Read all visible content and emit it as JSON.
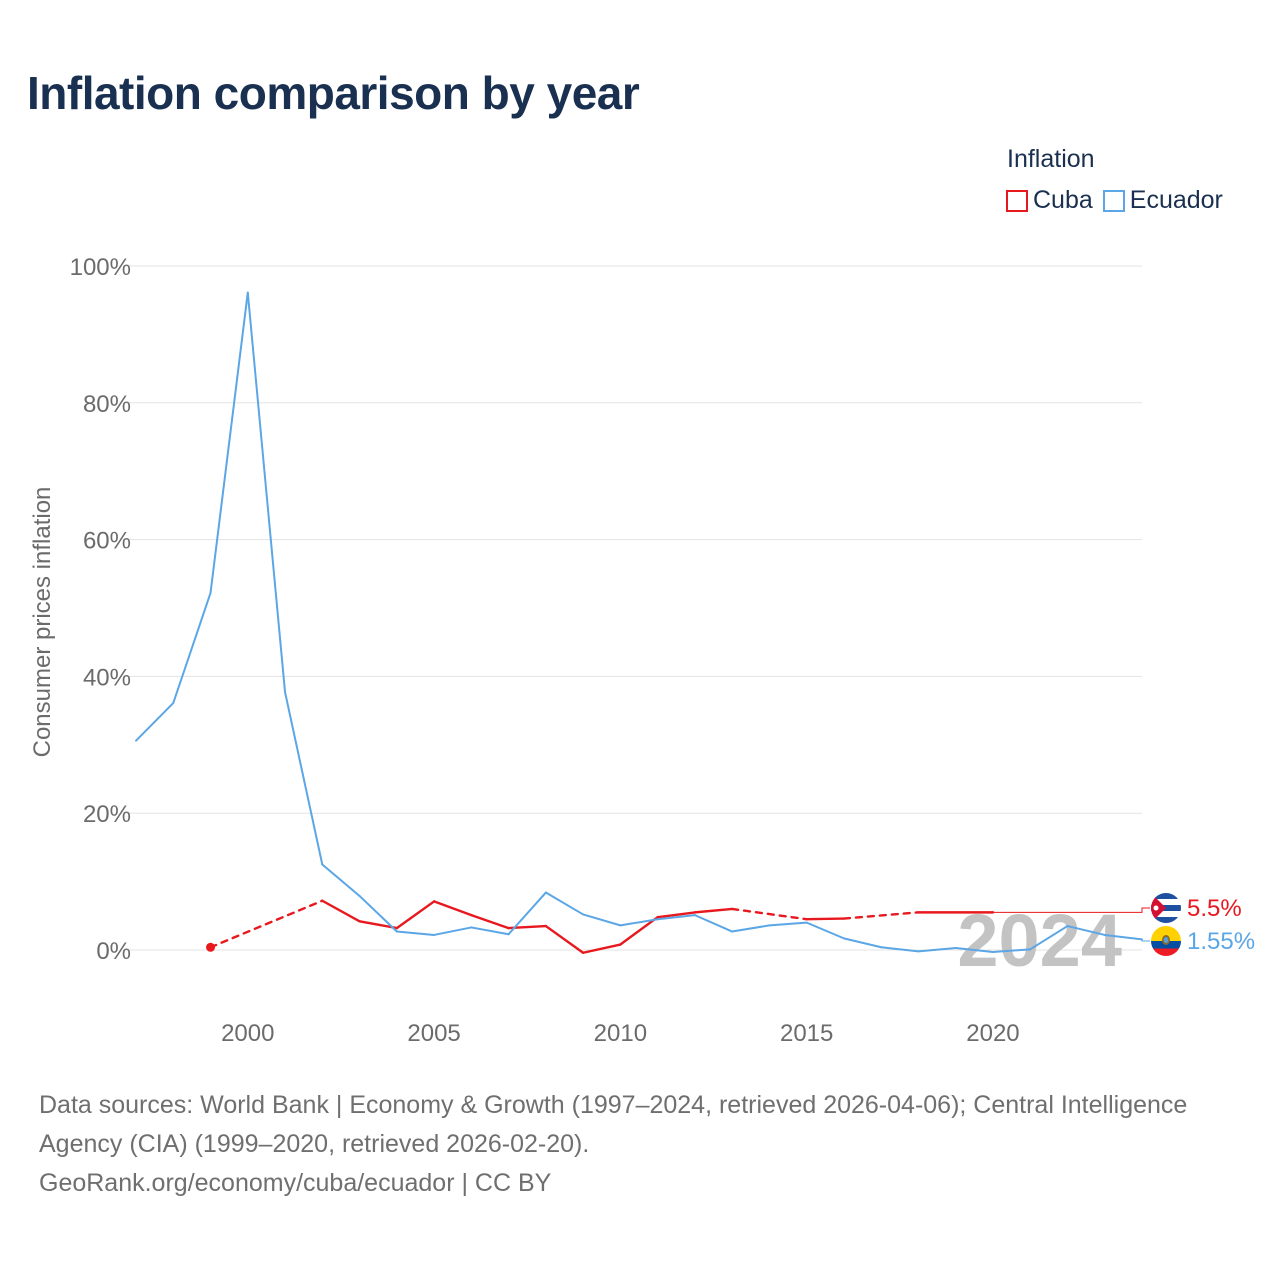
{
  "title": "Inflation comparison by year",
  "legend": {
    "title": "Inflation",
    "items": [
      {
        "label": "Cuba",
        "color": "#e8191e"
      },
      {
        "label": "Ecuador",
        "color": "#5ba6e6"
      }
    ]
  },
  "footer": {
    "sources": "Data sources: World Bank | Economy & Growth (1997–2024, retrieved 2026-04-06); Central Intelligence Agency (CIA) (1999–2020, retrieved 2026-02-20).",
    "credit": "GeoRank.org/economy/cuba/ecuador | CC BY"
  },
  "chart_data": {
    "type": "line",
    "title": "Inflation comparison by year",
    "ylabel": "Consumer prices inflation",
    "xlabel": "",
    "xlim": [
      1997,
      2024
    ],
    "ylim": [
      -9,
      100
    ],
    "x_ticks": [
      2000,
      2005,
      2010,
      2015,
      2020
    ],
    "x_tick_labels": [
      "2000",
      "2005",
      "2010",
      "2015",
      "2020"
    ],
    "y_ticks": [
      0,
      20,
      40,
      60,
      80,
      100
    ],
    "y_tick_labels": [
      "0%",
      "20%",
      "40%",
      "60%",
      "80%",
      "100%"
    ],
    "grid": true,
    "year_watermark": "2024",
    "series": [
      {
        "name": "Cuba",
        "color": "#e8191e",
        "end_label": "5.5%",
        "flag": "cuba-flag",
        "points": [
          [
            1999,
            0.4
          ],
          [
            2002,
            7.2
          ],
          [
            2003,
            4.2
          ],
          [
            2004,
            3.2
          ],
          [
            2005,
            7.1
          ],
          [
            2006,
            5.1
          ],
          [
            2007,
            3.2
          ],
          [
            2008,
            3.5
          ],
          [
            2009,
            -0.4
          ],
          [
            2010,
            0.8
          ],
          [
            2011,
            4.8
          ],
          [
            2012,
            5.5
          ],
          [
            2013,
            6.0
          ],
          [
            2015,
            4.5
          ],
          [
            2016,
            4.6
          ],
          [
            2018,
            5.5
          ],
          [
            2020,
            5.5
          ]
        ],
        "dashed_segments": [
          [
            1999,
            2002
          ],
          [
            2013,
            2015
          ],
          [
            2016,
            2018
          ]
        ],
        "end_value": 5.5
      },
      {
        "name": "Ecuador",
        "color": "#5ba6e6",
        "end_label": "1.55%",
        "flag": "ecuador-flag",
        "points": [
          [
            1997,
            30.6
          ],
          [
            1998,
            36.1
          ],
          [
            1999,
            52.2
          ],
          [
            2000,
            96.1
          ],
          [
            2001,
            37.7
          ],
          [
            2002,
            12.5
          ],
          [
            2003,
            7.9
          ],
          [
            2004,
            2.7
          ],
          [
            2005,
            2.2
          ],
          [
            2006,
            3.3
          ],
          [
            2007,
            2.3
          ],
          [
            2008,
            8.4
          ],
          [
            2009,
            5.2
          ],
          [
            2010,
            3.6
          ],
          [
            2011,
            4.5
          ],
          [
            2012,
            5.1
          ],
          [
            2013,
            2.7
          ],
          [
            2014,
            3.6
          ],
          [
            2015,
            4.0
          ],
          [
            2016,
            1.7
          ],
          [
            2017,
            0.4
          ],
          [
            2018,
            -0.2
          ],
          [
            2019,
            0.3
          ],
          [
            2020,
            -0.3
          ],
          [
            2021,
            0.1
          ],
          [
            2022,
            3.5
          ],
          [
            2023,
            2.2
          ],
          [
            2024,
            1.55
          ]
        ],
        "dashed_segments": [],
        "end_value": 1.55
      }
    ]
  }
}
